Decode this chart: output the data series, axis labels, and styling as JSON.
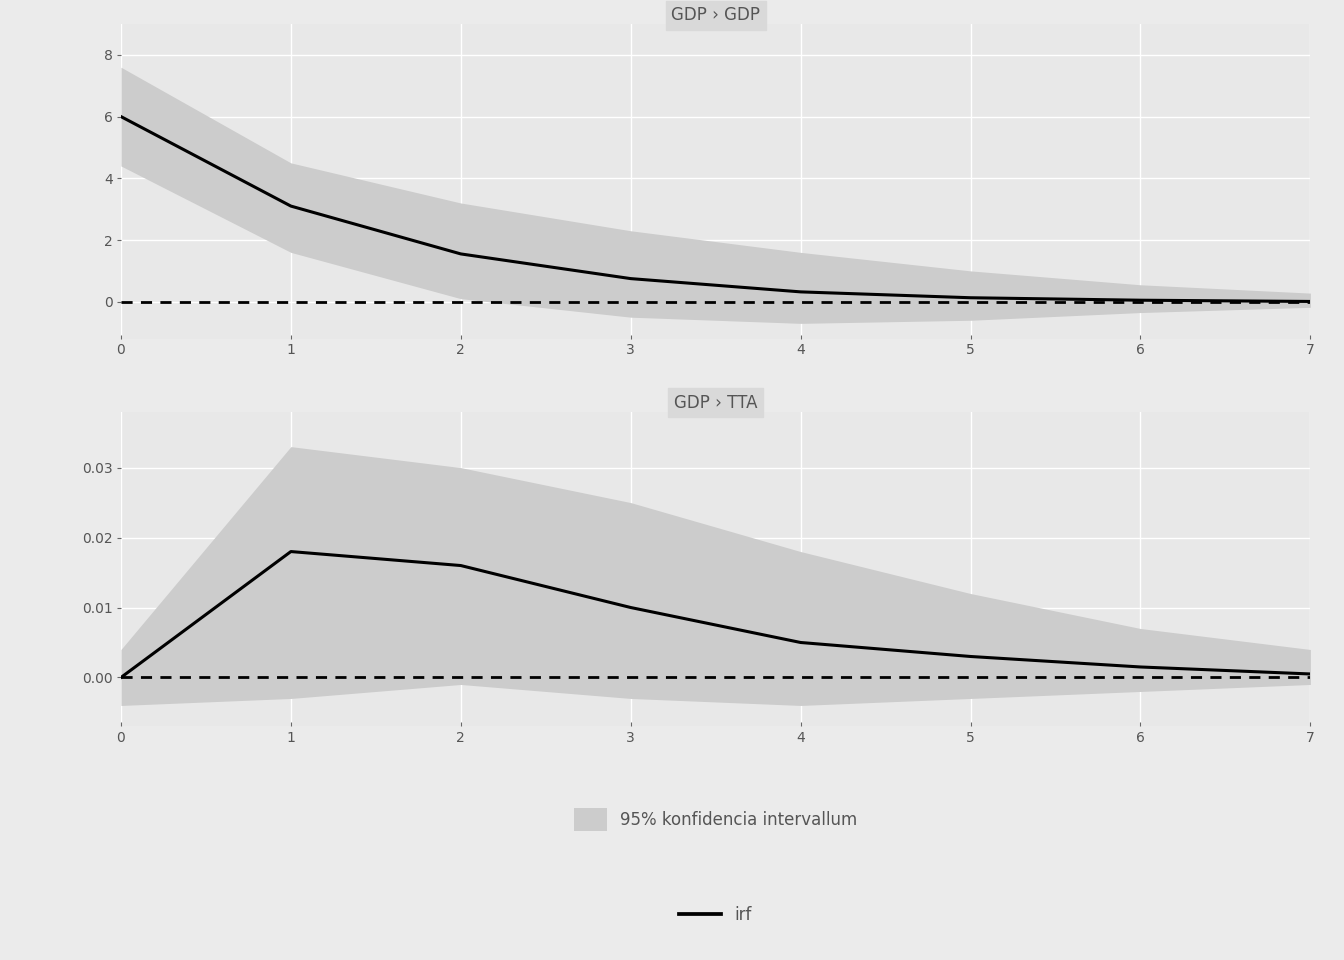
{
  "panel1_title": "GDP › GDP",
  "panel2_title": "GDP › TTA",
  "x": [
    0,
    1,
    2,
    3,
    4,
    5,
    6,
    7
  ],
  "irf1": [
    6.0,
    3.1,
    1.55,
    0.75,
    0.32,
    0.13,
    0.05,
    0.01
  ],
  "upper1": [
    7.6,
    4.5,
    3.2,
    2.3,
    1.6,
    1.0,
    0.55,
    0.28
  ],
  "lower1": [
    4.4,
    1.6,
    0.1,
    -0.5,
    -0.7,
    -0.6,
    -0.35,
    -0.18
  ],
  "irf2": [
    0.0,
    0.018,
    0.016,
    0.01,
    0.005,
    0.003,
    0.0015,
    0.0005
  ],
  "upper2": [
    0.004,
    0.033,
    0.03,
    0.025,
    0.018,
    0.012,
    0.007,
    0.004
  ],
  "lower2": [
    -0.004,
    -0.003,
    -0.001,
    -0.003,
    -0.004,
    -0.003,
    -0.002,
    -0.001
  ],
  "xlim": [
    0,
    7
  ],
  "ylim1": [
    -1.2,
    9.0
  ],
  "ylim2": [
    -0.007,
    0.038
  ],
  "yticks1": [
    0,
    2,
    4,
    6,
    8
  ],
  "yticks2": [
    0.0,
    0.01,
    0.02,
    0.03
  ],
  "xticks": [
    0,
    1,
    2,
    3,
    4,
    5,
    6,
    7
  ],
  "bg_color": "#ebebeb",
  "plot_bg_color": "#e8e8e8",
  "title_strip_color": "#d9d9d9",
  "ci_color": "#cccccc",
  "ci_alpha": 1.0,
  "irf_color": "#000000",
  "irf_linewidth": 2.2,
  "dotted_color": "#000000",
  "grid_color": "#ffffff",
  "legend_ci_label": "95% konfidencia intervallum",
  "legend_irf_label": "irf",
  "title_fontsize": 12,
  "tick_fontsize": 10,
  "legend_fontsize": 12,
  "tick_color": "#666666",
  "label_color": "#555555"
}
